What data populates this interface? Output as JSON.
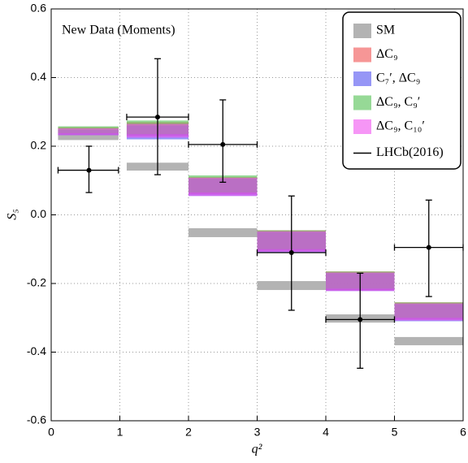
{
  "chart_data": {
    "type": "binned",
    "annotation": "New Data (Moments)",
    "x_label": "q²",
    "y_label": "S₅",
    "xlim": [
      0,
      6
    ],
    "ylim": [
      -0.6,
      0.6
    ],
    "xticks": [
      0,
      1,
      2,
      3,
      4,
      5,
      6
    ],
    "yticks": [
      -0.6,
      -0.4,
      -0.2,
      {
        "value": 0,
        "label": "0.0"
      },
      0.2,
      0.4,
      0.6
    ],
    "grid": true,
    "legend": "upper right",
    "bins": [
      [
        0.1,
        0.98
      ],
      [
        1.1,
        2
      ],
      [
        2,
        3
      ],
      [
        3,
        4
      ],
      [
        4,
        5
      ],
      [
        5,
        6
      ]
    ],
    "bands": [
      {
        "name": "SM",
        "color": "#b3b3b3",
        "opacity": 1,
        "low": [
          0.218,
          0.129,
          -0.065,
          -0.219,
          -0.314,
          -0.38
        ],
        "high": [
          0.236,
          0.152,
          -0.039,
          -0.193,
          -0.29,
          -0.356
        ]
      },
      {
        "name": "ΔC₉",
        "color": "#f05050",
        "opacity": 0.6,
        "low": [
          0.235,
          0.23,
          0.06,
          -0.105,
          -0.22,
          -0.305
        ],
        "high": [
          0.255,
          0.27,
          0.11,
          -0.045,
          -0.165,
          -0.255
        ]
      },
      {
        "name": "C₇′, ΔC₉",
        "color": "#5050f0",
        "opacity": 0.6,
        "low": [
          0.232,
          0.22,
          0.055,
          -0.11,
          -0.222,
          -0.31
        ],
        "high": [
          0.248,
          0.26,
          0.105,
          -0.05,
          -0.17,
          -0.26
        ]
      },
      {
        "name": "ΔC₉, C₉′",
        "color": "#50c050",
        "opacity": 0.6,
        "low": [
          0.238,
          0.235,
          0.065,
          -0.1,
          -0.215,
          -0.3
        ],
        "high": [
          0.258,
          0.275,
          0.115,
          -0.045,
          -0.165,
          -0.255
        ]
      },
      {
        "name": "ΔC₉, C₁₀′",
        "color": "#f050f0",
        "opacity": 0.6,
        "low": [
          0.232,
          0.225,
          0.055,
          -0.108,
          -0.222,
          -0.308
        ],
        "high": [
          0.252,
          0.265,
          0.108,
          -0.048,
          -0.168,
          -0.258
        ]
      }
    ],
    "measurement": {
      "name": "LHCb(2016)",
      "color": "#000000",
      "x": [
        0.55,
        1.55,
        2.5,
        3.5,
        4.5,
        5.5
      ],
      "values": [
        0.13,
        0.285,
        0.205,
        -0.11,
        -0.305,
        -0.095
      ],
      "err_plus": [
        0.07,
        0.17,
        0.13,
        0.165,
        0.135,
        0.138
      ],
      "err_minus": [
        0.065,
        0.168,
        0.11,
        0.168,
        0.142,
        0.143
      ]
    }
  }
}
